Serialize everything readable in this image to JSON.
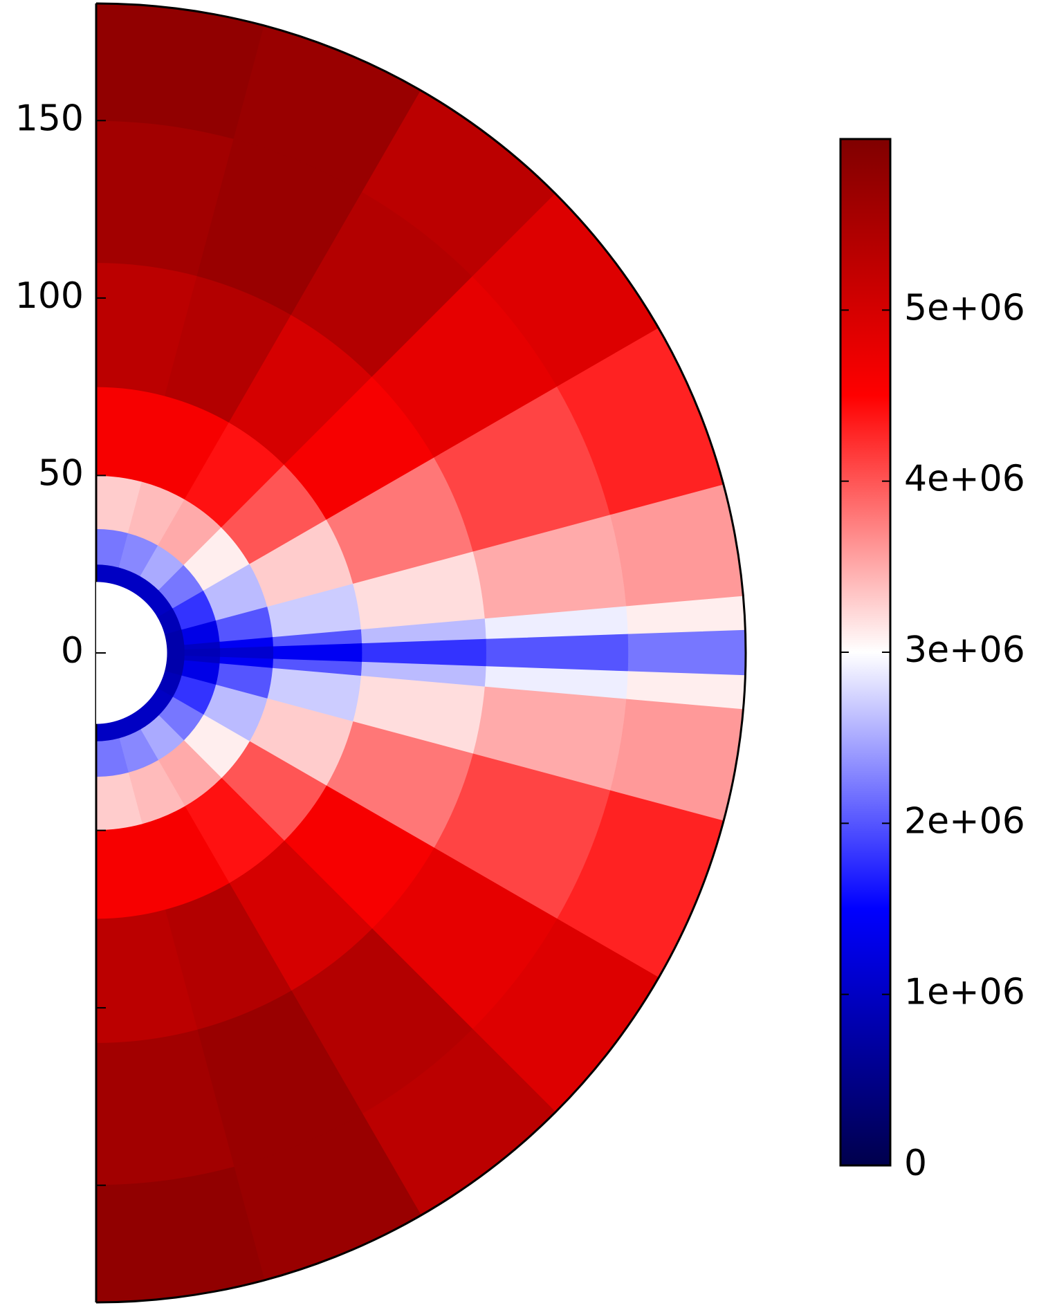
{
  "chart_data": {
    "type": "polar-heatmap",
    "xlim": [
      0,
      183
    ],
    "ylim": [
      -183,
      183
    ],
    "yticks": [
      {
        "value": -150,
        "label": null
      },
      {
        "value": -100,
        "label": null
      },
      {
        "value": -50,
        "label": null
      },
      0,
      50,
      100,
      150
    ],
    "r_edges": [
      20,
      25,
      35,
      50,
      75,
      110,
      150,
      183
    ],
    "theta_edges": [
      0,
      15,
      30,
      45,
      60,
      75,
      85,
      88,
      92,
      95,
      105,
      120,
      135,
      150,
      165,
      180
    ],
    "values": [
      [
        1000000,
        2200000,
        3300000,
        4600000,
        5300000,
        5600000,
        5800000
      ],
      [
        1000000,
        2300000,
        3400000,
        4600000,
        5400000,
        5700000,
        5700000
      ],
      [
        1000000,
        2500000,
        3500000,
        4400000,
        5000000,
        5400000,
        5300000
      ],
      [
        1000000,
        2200000,
        3100000,
        4000000,
        4600000,
        4800000,
        4900000
      ],
      [
        900000,
        1800000,
        2600000,
        3300000,
        3800000,
        4100000,
        4300000
      ],
      [
        800000,
        1300000,
        2000000,
        2700000,
        3200000,
        3500000,
        3600000
      ],
      [
        800000,
        1000000,
        1400000,
        2000000,
        2600000,
        2900000,
        3100000
      ],
      [
        800000,
        900000,
        1100000,
        1400000,
        1800000,
        2000000,
        2200000
      ],
      [
        800000,
        1000000,
        1400000,
        2000000,
        2600000,
        2900000,
        3100000
      ],
      [
        800000,
        1300000,
        2000000,
        2700000,
        3200000,
        3500000,
        3600000
      ],
      [
        900000,
        1800000,
        2600000,
        3300000,
        3800000,
        4100000,
        4300000
      ],
      [
        1000000,
        2200000,
        3100000,
        4000000,
        4600000,
        4800000,
        4900000
      ],
      [
        1000000,
        2500000,
        3500000,
        4400000,
        5000000,
        5400000,
        5300000
      ],
      [
        1000000,
        2300000,
        3400000,
        4600000,
        5400000,
        5700000,
        5700000
      ],
      [
        1000000,
        2200000,
        3300000,
        4600000,
        5300000,
        5600000,
        5800000
      ]
    ],
    "clim": [
      0,
      6000000
    ],
    "colormap": [
      "#00004c",
      "#0000ff",
      "#ffffff",
      "#ff0000",
      "#800000"
    ],
    "cticks": [
      0,
      {
        "value": 1000000,
        "label": "1e+06"
      },
      {
        "value": 2000000,
        "label": "2e+06"
      },
      {
        "value": 3000000,
        "label": "3e+06"
      },
      {
        "value": 4000000,
        "label": "4e+06"
      },
      {
        "value": 5000000,
        "label": "5e+06"
      }
    ]
  }
}
